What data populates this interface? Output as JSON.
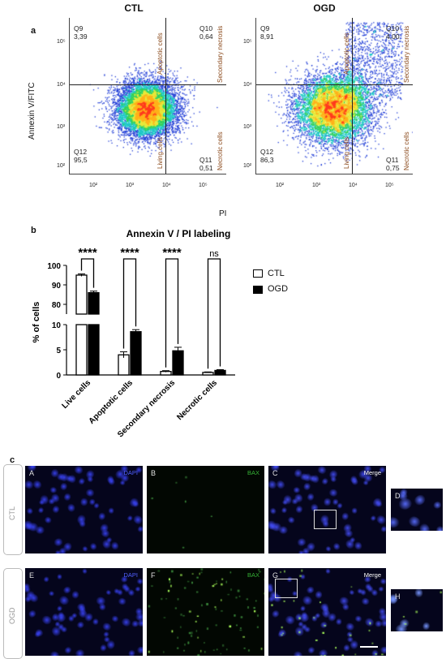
{
  "panel_a": {
    "letter": "a",
    "y_axis_label": "Annexin V/FITC",
    "x_axis_label": "PI",
    "plots": [
      {
        "title": "CTL",
        "quadrants": {
          "q9": {
            "name": "Q9",
            "value": "3,39"
          },
          "q10": {
            "name": "Q10",
            "value": "0,64"
          },
          "q11": {
            "name": "Q11",
            "value": "0,51"
          },
          "q12": {
            "name": "Q12",
            "value": "95,5"
          }
        },
        "regions": {
          "apoptotic": "Apoptotic cells",
          "secondary": "Secondary necrosis",
          "living": "Living cells",
          "necrotic": "Necrotic cells"
        }
      },
      {
        "title": "OGD",
        "quadrants": {
          "q9": {
            "name": "Q9",
            "value": "8,91"
          },
          "q10": {
            "name": "Q10",
            "value": "4,00"
          },
          "q11": {
            "name": "Q11",
            "value": "0,75"
          },
          "q12": {
            "name": "Q12",
            "value": "86,3"
          }
        },
        "regions": {
          "apoptotic": "Apoptotic cells",
          "secondary": "Secondary necrosis",
          "living": "Living cells",
          "necrotic": "Necrotic cells"
        }
      }
    ],
    "x_ticks": [
      "10²",
      "10³",
      "10⁴",
      "10⁵"
    ],
    "y_ticks": [
      "10⁵",
      "10⁴",
      "10³",
      "10²"
    ]
  },
  "panel_b": {
    "letter": "b"
  },
  "chart_data": {
    "type": "bar",
    "title": "Annexin V / PI labeling",
    "ylabel": "% of cells",
    "categories": [
      "Live cells",
      "Apoptotic cells",
      "Secondary necrosis",
      "Necrotic cells"
    ],
    "series": [
      {
        "name": "CTL",
        "values": [
          95.0,
          4.0,
          0.7,
          0.5
        ],
        "errors": [
          0.6,
          0.6,
          0.15,
          0.1
        ],
        "color": "#ffffff"
      },
      {
        "name": "OGD",
        "values": [
          86.0,
          8.6,
          4.8,
          0.9
        ],
        "errors": [
          0.8,
          0.4,
          0.7,
          0.15
        ],
        "color": "#000000"
      }
    ],
    "y_broken_axis": {
      "lower": [
        0,
        10
      ],
      "upper": [
        75,
        100
      ]
    },
    "y_ticks_lower": [
      "0",
      "5",
      "10"
    ],
    "y_ticks_upper": [
      "80",
      "90",
      "100"
    ],
    "significance": [
      "****",
      "****",
      "****",
      "ns"
    ],
    "legend_position": "right"
  },
  "panel_c": {
    "letter": "c",
    "rows": [
      {
        "condition": "CTL",
        "panels": [
          {
            "letter": "A",
            "stain": "DAPI",
            "stain_color": "#4f63ff"
          },
          {
            "letter": "B",
            "stain": "BAX",
            "stain_color": "#33b633"
          },
          {
            "letter": "C",
            "stain": "Merge",
            "stain_color": "#ffffff"
          },
          {
            "letter": "D",
            "stain": "",
            "stain_color": "#ffffff"
          }
        ]
      },
      {
        "condition": "OGD",
        "panels": [
          {
            "letter": "E",
            "stain": "DAPI",
            "stain_color": "#4f63ff"
          },
          {
            "letter": "F",
            "stain": "BAX",
            "stain_color": "#33b633"
          },
          {
            "letter": "G",
            "stain": "Merge",
            "stain_color": "#ffffff"
          },
          {
            "letter": "H",
            "stain": "",
            "stain_color": "#ffffff"
          }
        ]
      }
    ]
  }
}
